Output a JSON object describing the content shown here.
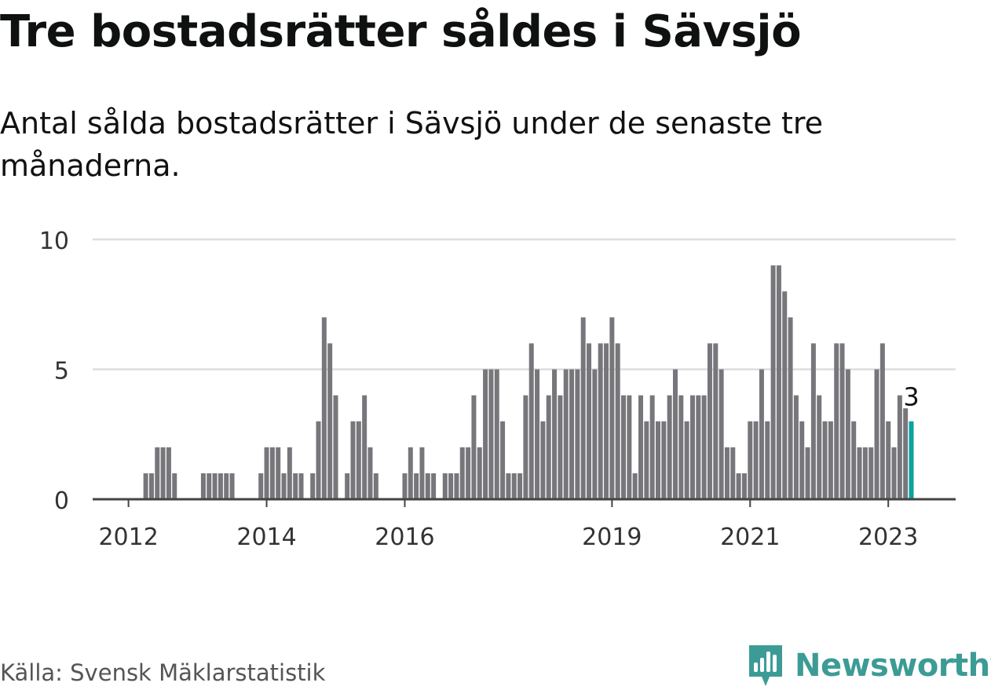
{
  "title": "Tre bostadsrätter såldes i Sävsjö",
  "subtitle": "Antal sålda bostadsrätter i Sävsjö under de senaste tre månaderna.",
  "source": "Källa: Svensk Mäklarstatistik",
  "brand": {
    "name": "Newsworthy",
    "icon": "newsworthy-logo-icon",
    "color": "#3d9b96"
  },
  "colors": {
    "bar": "#77767b",
    "highlight": "#0aa39e",
    "grid": "#dddddd",
    "axis": "#444444"
  },
  "chart_data": {
    "type": "bar",
    "title": "Tre bostadsrätter såldes i Sävsjö",
    "xlabel": "",
    "ylabel": "",
    "ylim": [
      0,
      10
    ],
    "yticks": [
      0,
      5,
      10
    ],
    "grid": true,
    "x_start": "2011-05",
    "x_end": "2023-05",
    "xtick_labels": [
      {
        "label": "2012",
        "date": "2012-01"
      },
      {
        "label": "2014",
        "date": "2014-01"
      },
      {
        "label": "2016",
        "date": "2016-01"
      },
      {
        "label": "2019",
        "date": "2019-01"
      },
      {
        "label": "2021",
        "date": "2021-01"
      },
      {
        "label": "2023",
        "date": "2023-01"
      }
    ],
    "series": [
      {
        "values": [
          {
            "x": "2012-04",
            "y": 1
          },
          {
            "x": "2012-05",
            "y": 1
          },
          {
            "x": "2012-06",
            "y": 2
          },
          {
            "x": "2012-07",
            "y": 2
          },
          {
            "x": "2012-08",
            "y": 2
          },
          {
            "x": "2012-09",
            "y": 1
          },
          {
            "x": "2013-02",
            "y": 1
          },
          {
            "x": "2013-03",
            "y": 1
          },
          {
            "x": "2013-04",
            "y": 1
          },
          {
            "x": "2013-05",
            "y": 1
          },
          {
            "x": "2013-06",
            "y": 1
          },
          {
            "x": "2013-07",
            "y": 1
          },
          {
            "x": "2013-12",
            "y": 1
          },
          {
            "x": "2014-01",
            "y": 2
          },
          {
            "x": "2014-02",
            "y": 2
          },
          {
            "x": "2014-03",
            "y": 2
          },
          {
            "x": "2014-04",
            "y": 1
          },
          {
            "x": "2014-05",
            "y": 2
          },
          {
            "x": "2014-06",
            "y": 1
          },
          {
            "x": "2014-07",
            "y": 1
          },
          {
            "x": "2014-09",
            "y": 1
          },
          {
            "x": "2014-10",
            "y": 3
          },
          {
            "x": "2014-11",
            "y": 7
          },
          {
            "x": "2014-12",
            "y": 6
          },
          {
            "x": "2015-01",
            "y": 4
          },
          {
            "x": "2015-03",
            "y": 1
          },
          {
            "x": "2015-04",
            "y": 3
          },
          {
            "x": "2015-05",
            "y": 3
          },
          {
            "x": "2015-06",
            "y": 4
          },
          {
            "x": "2015-07",
            "y": 2
          },
          {
            "x": "2015-08",
            "y": 1
          },
          {
            "x": "2016-01",
            "y": 1
          },
          {
            "x": "2016-02",
            "y": 2
          },
          {
            "x": "2016-03",
            "y": 1
          },
          {
            "x": "2016-04",
            "y": 2
          },
          {
            "x": "2016-05",
            "y": 1
          },
          {
            "x": "2016-06",
            "y": 1
          },
          {
            "x": "2016-08",
            "y": 1
          },
          {
            "x": "2016-09",
            "y": 1
          },
          {
            "x": "2016-10",
            "y": 1
          },
          {
            "x": "2016-11",
            "y": 2
          },
          {
            "x": "2016-12",
            "y": 2
          },
          {
            "x": "2017-01",
            "y": 4
          },
          {
            "x": "2017-02",
            "y": 2
          },
          {
            "x": "2017-03",
            "y": 5
          },
          {
            "x": "2017-04",
            "y": 5
          },
          {
            "x": "2017-05",
            "y": 5
          },
          {
            "x": "2017-06",
            "y": 3
          },
          {
            "x": "2017-07",
            "y": 1
          },
          {
            "x": "2017-08",
            "y": 1
          },
          {
            "x": "2017-09",
            "y": 1
          },
          {
            "x": "2017-10",
            "y": 4
          },
          {
            "x": "2017-11",
            "y": 6
          },
          {
            "x": "2017-12",
            "y": 5
          },
          {
            "x": "2018-01",
            "y": 3
          },
          {
            "x": "2018-02",
            "y": 4
          },
          {
            "x": "2018-03",
            "y": 5
          },
          {
            "x": "2018-04",
            "y": 4
          },
          {
            "x": "2018-05",
            "y": 5
          },
          {
            "x": "2018-06",
            "y": 5
          },
          {
            "x": "2018-07",
            "y": 5
          },
          {
            "x": "2018-08",
            "y": 7
          },
          {
            "x": "2018-09",
            "y": 6
          },
          {
            "x": "2018-10",
            "y": 5
          },
          {
            "x": "2018-11",
            "y": 6
          },
          {
            "x": "2018-12",
            "y": 6
          },
          {
            "x": "2019-01",
            "y": 7
          },
          {
            "x": "2019-02",
            "y": 6
          },
          {
            "x": "2019-03",
            "y": 4
          },
          {
            "x": "2019-04",
            "y": 4
          },
          {
            "x": "2019-05",
            "y": 1
          },
          {
            "x": "2019-06",
            "y": 4
          },
          {
            "x": "2019-07",
            "y": 3
          },
          {
            "x": "2019-08",
            "y": 4
          },
          {
            "x": "2019-09",
            "y": 3
          },
          {
            "x": "2019-10",
            "y": 3
          },
          {
            "x": "2019-11",
            "y": 4
          },
          {
            "x": "2019-12",
            "y": 5
          },
          {
            "x": "2020-01",
            "y": 4
          },
          {
            "x": "2020-02",
            "y": 3
          },
          {
            "x": "2020-03",
            "y": 4
          },
          {
            "x": "2020-04",
            "y": 4
          },
          {
            "x": "2020-05",
            "y": 4
          },
          {
            "x": "2020-06",
            "y": 6
          },
          {
            "x": "2020-07",
            "y": 6
          },
          {
            "x": "2020-08",
            "y": 5
          },
          {
            "x": "2020-09",
            "y": 2
          },
          {
            "x": "2020-10",
            "y": 2
          },
          {
            "x": "2020-11",
            "y": 1
          },
          {
            "x": "2020-12",
            "y": 1
          },
          {
            "x": "2021-01",
            "y": 3
          },
          {
            "x": "2021-02",
            "y": 3
          },
          {
            "x": "2021-03",
            "y": 5
          },
          {
            "x": "2021-04",
            "y": 3
          },
          {
            "x": "2021-05",
            "y": 9
          },
          {
            "x": "2021-06",
            "y": 9
          },
          {
            "x": "2021-07",
            "y": 8
          },
          {
            "x": "2021-08",
            "y": 7
          },
          {
            "x": "2021-09",
            "y": 4
          },
          {
            "x": "2021-10",
            "y": 3
          },
          {
            "x": "2021-11",
            "y": 2
          },
          {
            "x": "2021-12",
            "y": 6
          },
          {
            "x": "2022-01",
            "y": 4
          },
          {
            "x": "2022-02",
            "y": 3
          },
          {
            "x": "2022-03",
            "y": 3
          },
          {
            "x": "2022-04",
            "y": 6
          },
          {
            "x": "2022-05",
            "y": 6
          },
          {
            "x": "2022-06",
            "y": 5
          },
          {
            "x": "2022-07",
            "y": 3
          },
          {
            "x": "2022-08",
            "y": 2
          },
          {
            "x": "2022-09",
            "y": 2
          },
          {
            "x": "2022-10",
            "y": 2
          },
          {
            "x": "2022-11",
            "y": 5
          },
          {
            "x": "2022-12",
            "y": 6
          },
          {
            "x": "2023-01",
            "y": 3
          },
          {
            "x": "2023-02",
            "y": 2
          },
          {
            "x": "2023-03",
            "y": 4
          },
          {
            "x": "2023-04",
            "y": 3.5
          },
          {
            "x": "2023-05",
            "y": 3
          }
        ]
      }
    ],
    "highlight": {
      "x": "2023-05",
      "y": 3,
      "label": "3"
    }
  }
}
